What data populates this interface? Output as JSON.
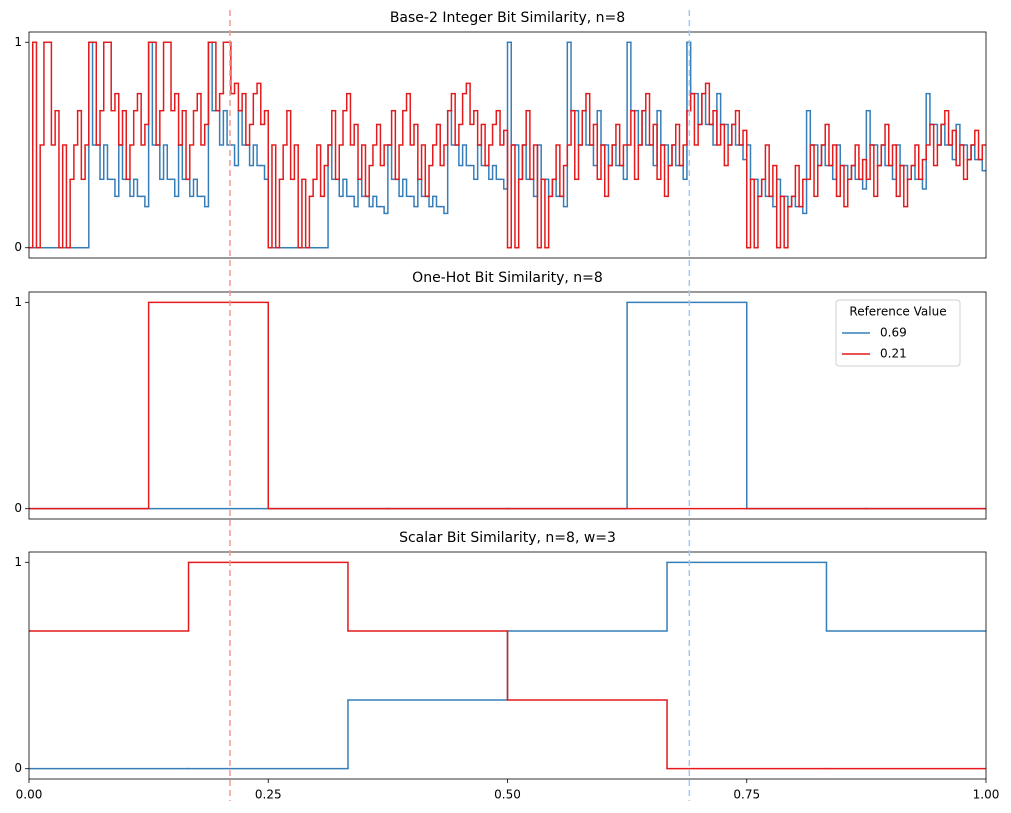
{
  "chart_data": [
    {
      "type": "line",
      "step": "post",
      "title": "Base-2 Integer Bit Similarity, n=8",
      "x": [
        0,
        0.0039,
        0.0078,
        0.0117,
        0.0156,
        0.0195,
        0.0234,
        0.0273,
        0.0313,
        0.0352,
        0.0391,
        0.043,
        0.0469,
        0.0508,
        0.0547,
        0.0586,
        0.0625,
        0.0664,
        0.0703,
        0.0742,
        0.0781,
        0.082,
        0.0859,
        0.0898,
        0.0938,
        0.0977,
        0.1016,
        0.1055,
        0.1094,
        0.1133,
        0.1172,
        0.1211,
        0.125,
        0.1289,
        0.1328,
        0.1367,
        0.1406,
        0.1445,
        0.1484,
        0.1523,
        0.1563,
        0.1602,
        0.1641,
        0.168,
        0.1719,
        0.1758,
        0.1797,
        0.1836,
        0.1875,
        0.1914,
        0.1953,
        0.1992,
        0.2031,
        0.207,
        0.2109,
        0.2148,
        0.2188,
        0.2227,
        0.2266,
        0.2305,
        0.2344,
        0.2383,
        0.2422,
        0.2461,
        0.25,
        0.2539,
        0.2578,
        0.2617,
        0.2656,
        0.2695,
        0.2734,
        0.2773,
        0.2813,
        0.2852,
        0.2891,
        0.293,
        0.2969,
        0.3008,
        0.3047,
        0.3086,
        0.3125,
        0.3164,
        0.3203,
        0.3242,
        0.3281,
        0.332,
        0.3359,
        0.3398,
        0.3438,
        0.3477,
        0.3516,
        0.3555,
        0.3594,
        0.3633,
        0.3672,
        0.3711,
        0.375,
        0.3789,
        0.3828,
        0.3867,
        0.3906,
        0.3945,
        0.3984,
        0.4023,
        0.4063,
        0.4102,
        0.4141,
        0.418,
        0.4219,
        0.4258,
        0.4297,
        0.4336,
        0.4375,
        0.4414,
        0.4453,
        0.4492,
        0.4531,
        0.457,
        0.4609,
        0.4648,
        0.4688,
        0.4727,
        0.4766,
        0.4805,
        0.4844,
        0.4883,
        0.4922,
        0.4961,
        0.5,
        0.5039,
        0.5078,
        0.5117,
        0.5156,
        0.5195,
        0.5234,
        0.5273,
        0.5313,
        0.5352,
        0.5391,
        0.543,
        0.5469,
        0.5508,
        0.5547,
        0.5586,
        0.5625,
        0.5664,
        0.5703,
        0.5742,
        0.5781,
        0.582,
        0.5859,
        0.5898,
        0.5938,
        0.5977,
        0.6016,
        0.6055,
        0.6094,
        0.6133,
        0.6172,
        0.6211,
        0.625,
        0.6289,
        0.6328,
        0.6367,
        0.6406,
        0.6445,
        0.6484,
        0.6523,
        0.6563,
        0.6602,
        0.6641,
        0.668,
        0.6719,
        0.6758,
        0.6797,
        0.6836,
        0.6875,
        0.6914,
        0.6953,
        0.6992,
        0.7031,
        0.707,
        0.7109,
        0.7148,
        0.7188,
        0.7227,
        0.7266,
        0.7305,
        0.7344,
        0.7383,
        0.7422,
        0.7461,
        0.75,
        0.7539,
        0.7578,
        0.7617,
        0.7656,
        0.7695,
        0.7734,
        0.7773,
        0.7813,
        0.7852,
        0.7891,
        0.793,
        0.7969,
        0.8008,
        0.8047,
        0.8086,
        0.8125,
        0.8164,
        0.8203,
        0.8242,
        0.8281,
        0.832,
        0.8359,
        0.8398,
        0.8438,
        0.8477,
        0.8516,
        0.8555,
        0.8594,
        0.8633,
        0.8672,
        0.8711,
        0.875,
        0.8789,
        0.8828,
        0.8867,
        0.8906,
        0.8945,
        0.8984,
        0.9023,
        0.9063,
        0.9102,
        0.9141,
        0.918,
        0.9219,
        0.9258,
        0.9297,
        0.9336,
        0.9375,
        0.9414,
        0.9453,
        0.9492,
        0.9531,
        0.957,
        0.9609,
        0.9648,
        0.9688,
        0.9727,
        0.9766,
        0.9805,
        0.9844,
        0.9883,
        0.9922,
        0.9961
      ],
      "series": [
        {
          "color": "#377eb8",
          "values": [
            0,
            0,
            0,
            0,
            0,
            0,
            0,
            0,
            0,
            0,
            0,
            0,
            0,
            0,
            0,
            0,
            1,
            0.5,
            0.5,
            0.333,
            0.5,
            0.333,
            0.333,
            0.25,
            0.5,
            0.333,
            0.333,
            0.25,
            0.333,
            0.25,
            0.25,
            0.2,
            1,
            0.5,
            0.5,
            0.333,
            0.5,
            0.333,
            0.333,
            0.25,
            0.5,
            0.333,
            0.333,
            0.25,
            0.333,
            0.25,
            0.25,
            0.2,
            1,
            0.667,
            0.667,
            0.5,
            0.667,
            0.5,
            0.5,
            0.4,
            0.667,
            0.5,
            0.5,
            0.4,
            0.5,
            0.4,
            0.4,
            0.333,
            0,
            0,
            0,
            0,
            0,
            0,
            0,
            0,
            0,
            0,
            0,
            0,
            0,
            0,
            0,
            0,
            0.5,
            0.333,
            0.333,
            0.25,
            0.333,
            0.25,
            0.25,
            0.2,
            0.333,
            0.25,
            0.25,
            0.2,
            0.25,
            0.2,
            0.2,
            0.167,
            0.5,
            0.333,
            0.333,
            0.25,
            0.333,
            0.25,
            0.25,
            0.2,
            0.333,
            0.25,
            0.25,
            0.2,
            0.25,
            0.2,
            0.2,
            0.167,
            0.667,
            0.5,
            0.5,
            0.4,
            0.5,
            0.4,
            0.4,
            0.333,
            0.5,
            0.4,
            0.4,
            0.333,
            0.4,
            0.333,
            0.333,
            0.286,
            1,
            0.5,
            0.5,
            0.333,
            0.5,
            0.333,
            0.333,
            0.25,
            0.5,
            0.333,
            0.333,
            0.25,
            0.333,
            0.25,
            0.25,
            0.2,
            1,
            0.667,
            0.667,
            0.5,
            0.667,
            0.5,
            0.5,
            0.4,
            0.667,
            0.5,
            0.5,
            0.4,
            0.5,
            0.4,
            0.4,
            0.333,
            1,
            0.667,
            0.667,
            0.5,
            0.667,
            0.5,
            0.5,
            0.4,
            0.667,
            0.5,
            0.5,
            0.4,
            0.5,
            0.4,
            0.4,
            0.333,
            1,
            0.75,
            0.75,
            0.6,
            0.75,
            0.6,
            0.6,
            0.5,
            0.75,
            0.6,
            0.6,
            0.5,
            0.6,
            0.5,
            0.5,
            0.429,
            0.5,
            0.333,
            0.333,
            0.25,
            0.333,
            0.25,
            0.25,
            0.2,
            0.333,
            0.25,
            0.25,
            0.2,
            0.25,
            0.2,
            0.2,
            0.167,
            0.667,
            0.5,
            0.5,
            0.4,
            0.5,
            0.4,
            0.4,
            0.333,
            0.5,
            0.4,
            0.4,
            0.333,
            0.4,
            0.333,
            0.333,
            0.286,
            0.667,
            0.5,
            0.5,
            0.4,
            0.5,
            0.4,
            0.4,
            0.333,
            0.5,
            0.4,
            0.4,
            0.333,
            0.4,
            0.333,
            0.333,
            0.286,
            0.75,
            0.6,
            0.6,
            0.5,
            0.6,
            0.5,
            0.5,
            0.429,
            0.6,
            0.5,
            0.5,
            0.429,
            0.5,
            0.429,
            0.429,
            0.375
          ]
        },
        {
          "color": "#e41a1c",
          "values": [
            0,
            1,
            0,
            0.5,
            1,
            1,
            0.5,
            0.667,
            0,
            0.5,
            0,
            0.333,
            0.5,
            0.667,
            0.333,
            0.5,
            1,
            1,
            0.5,
            0.667,
            1,
            1,
            0.667,
            0.75,
            0.5,
            0.667,
            0.333,
            0.5,
            0.667,
            0.75,
            0.5,
            0.6,
            1,
            1,
            0.5,
            0.667,
            1,
            1,
            0.667,
            0.75,
            0.5,
            0.667,
            0.333,
            0.5,
            0.667,
            0.75,
            0.5,
            0.6,
            1,
            1,
            0.667,
            0.75,
            1,
            1,
            0.75,
            0.8,
            0.667,
            0.75,
            0.5,
            0.6,
            0.75,
            0.8,
            0.6,
            0.667,
            0,
            0.5,
            0,
            0.333,
            0.5,
            0.667,
            0.333,
            0.5,
            0,
            0.333,
            0,
            0.25,
            0.333,
            0.5,
            0.25,
            0.4,
            0.5,
            0.667,
            0.333,
            0.5,
            0.667,
            0.75,
            0.5,
            0.6,
            0.333,
            0.5,
            0.25,
            0.4,
            0.5,
            0.6,
            0.4,
            0.5,
            0.5,
            0.667,
            0.333,
            0.5,
            0.667,
            0.75,
            0.5,
            0.6,
            0.333,
            0.5,
            0.25,
            0.4,
            0.5,
            0.6,
            0.4,
            0.5,
            0.667,
            0.75,
            0.5,
            0.6,
            0.75,
            0.8,
            0.6,
            0.667,
            0.5,
            0.6,
            0.4,
            0.5,
            0.6,
            0.667,
            0.5,
            0.571,
            0,
            0.5,
            0,
            0.333,
            0.5,
            0.667,
            0.333,
            0.5,
            0,
            0.333,
            0,
            0.25,
            0.333,
            0.5,
            0.25,
            0.4,
            0.5,
            0.667,
            0.333,
            0.5,
            0.667,
            0.75,
            0.5,
            0.6,
            0.333,
            0.5,
            0.25,
            0.4,
            0.5,
            0.6,
            0.4,
            0.5,
            0.5,
            0.667,
            0.333,
            0.5,
            0.667,
            0.75,
            0.5,
            0.6,
            0.333,
            0.5,
            0.25,
            0.4,
            0.5,
            0.6,
            0.4,
            0.5,
            0.667,
            0.75,
            0.5,
            0.6,
            0.75,
            0.8,
            0.6,
            0.667,
            0.5,
            0.6,
            0.4,
            0.5,
            0.6,
            0.667,
            0.5,
            0.571,
            0,
            0.333,
            0,
            0.25,
            0.333,
            0.5,
            0.25,
            0.4,
            0,
            0.25,
            0,
            0.2,
            0.25,
            0.4,
            0.2,
            0.333,
            0.333,
            0.5,
            0.25,
            0.4,
            0.5,
            0.6,
            0.4,
            0.5,
            0.25,
            0.4,
            0.2,
            0.333,
            0.4,
            0.5,
            0.333,
            0.429,
            0.333,
            0.5,
            0.25,
            0.4,
            0.5,
            0.6,
            0.4,
            0.5,
            0.25,
            0.4,
            0.2,
            0.333,
            0.4,
            0.5,
            0.333,
            0.429,
            0.5,
            0.6,
            0.4,
            0.5,
            0.6,
            0.667,
            0.5,
            0.571,
            0.4,
            0.5,
            0.333,
            0.429,
            0.5,
            0.571,
            0.429,
            0.5
          ]
        }
      ],
      "xlim": [
        0,
        1
      ],
      "ylim": [
        -0.05,
        1.05
      ],
      "yticks": [
        0,
        1
      ]
    },
    {
      "type": "line",
      "step": "post",
      "title": "One-Hot Bit Similarity, n=8",
      "x": [
        0,
        0.125,
        0.25,
        0.375,
        0.5,
        0.625,
        0.75,
        0.875
      ],
      "series": [
        {
          "name": "0.69",
          "color": "#377eb8",
          "values": [
            0,
            0,
            0,
            0,
            0,
            1,
            0,
            0
          ]
        },
        {
          "name": "0.21",
          "color": "#e41a1c",
          "values": [
            0,
            1,
            0,
            0,
            0,
            0,
            0,
            0
          ]
        }
      ],
      "xlim": [
        0,
        1
      ],
      "ylim": [
        -0.05,
        1.05
      ],
      "yticks": [
        0,
        1
      ],
      "legend": "upper right",
      "legend_title": "Reference Value"
    },
    {
      "type": "line",
      "step": "post",
      "title": "Scalar Bit Similarity, n=8, w=3",
      "x": [
        0,
        0.1667,
        0.3333,
        0.5,
        0.6667,
        0.8333
      ],
      "series": [
        {
          "color": "#377eb8",
          "values": [
            0,
            0,
            0.333,
            0.667,
            1,
            0.667
          ]
        },
        {
          "color": "#e41a1c",
          "values": [
            0.667,
            1,
            0.667,
            0.333,
            0,
            0
          ]
        }
      ],
      "xlim": [
        0,
        1
      ],
      "ylim": [
        -0.05,
        1.05
      ],
      "yticks": [
        0,
        1
      ],
      "xticks": [
        {
          "value": 0,
          "label": "0.00"
        },
        {
          "value": 0.25,
          "label": "0.25"
        },
        {
          "value": 0.5,
          "label": "0.50"
        },
        {
          "value": 0.75,
          "label": "0.75"
        },
        {
          "value": 1,
          "label": "1.00"
        }
      ],
      "vlines": [
        {
          "value": 0.21,
          "color": "#f29a94"
        },
        {
          "value": 0.69,
          "color": "#a6c8f0"
        }
      ]
    }
  ]
}
